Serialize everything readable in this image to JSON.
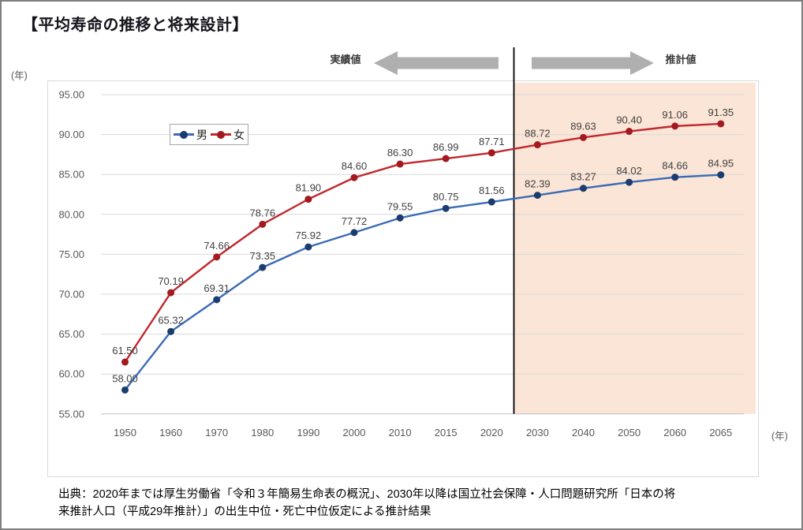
{
  "page": {
    "title": "【平均寿命の推移と将来設計】",
    "source_lines": [
      "出典：2020年までは厚生労働省「令和３年簡易生命表の概況」、2030年以降は国立社会保障・人口問題研究所「日本の将",
      "来推計人口（平成29年推計）」の出生中位・死亡中位仮定による推計結果"
    ]
  },
  "chart_data": {
    "type": "line",
    "title": "平均寿命の推移と将来設計",
    "categories": [
      "1950",
      "1960",
      "1970",
      "1980",
      "1990",
      "2000",
      "2010",
      "2015",
      "2020",
      "2030",
      "2040",
      "2050",
      "2060",
      "2065"
    ],
    "series": [
      {
        "name": "男",
        "values": [
          58.0,
          65.32,
          69.31,
          73.35,
          75.92,
          77.72,
          79.55,
          80.75,
          81.56,
          82.39,
          83.27,
          84.02,
          84.66,
          84.95
        ],
        "line_color": "#3a6bb5",
        "marker_color": "#1b3c6e"
      },
      {
        "name": "女",
        "values": [
          61.5,
          70.19,
          74.66,
          78.76,
          81.9,
          84.6,
          86.3,
          86.99,
          87.71,
          88.72,
          89.63,
          90.4,
          91.06,
          91.35
        ],
        "line_color": "#c1272d",
        "marker_color": "#a2191f"
      }
    ],
    "y_axis": {
      "min": 55,
      "max": 95,
      "step": 5,
      "tick_format_decimals": 2
    },
    "y_unit_label": "(年)",
    "x_unit_label": "(年)",
    "grid": true,
    "legend_position": "inside-top-left",
    "annotations": {
      "actual": "実績値",
      "projected": "推計値"
    },
    "separator": {
      "between": [
        "2020",
        "2030"
      ],
      "color": "#000000"
    },
    "projection_region": {
      "from_after_category": "2020",
      "color": "#fbe5d6"
    },
    "data_labels": true,
    "colors": {
      "gridline": "#d9d9d9",
      "axis_line": "#bfbfbf",
      "tick_label": "#595959",
      "data_label": "#404040",
      "arrow": "#afafaf"
    }
  }
}
